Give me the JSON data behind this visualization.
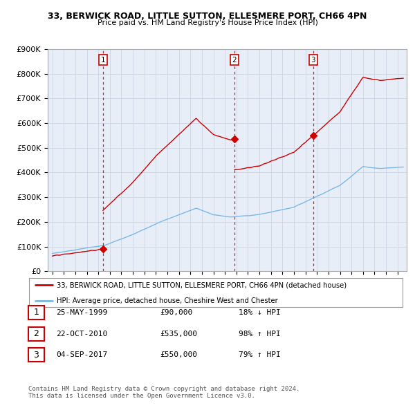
{
  "title_line1": "33, BERWICK ROAD, LITTLE SUTTON, ELLESMERE PORT, CH66 4PN",
  "title_line2": "Price paid vs. HM Land Registry's House Price Index (HPI)",
  "ylim": [
    0,
    900000
  ],
  "yticks": [
    0,
    100000,
    200000,
    300000,
    400000,
    500000,
    600000,
    700000,
    800000,
    900000
  ],
  "ytick_labels": [
    "£0",
    "£100K",
    "£200K",
    "£300K",
    "£400K",
    "£500K",
    "£600K",
    "£700K",
    "£800K",
    "£900K"
  ],
  "sales": [
    {
      "date_num": 1999.39,
      "price": 90000,
      "label": "1"
    },
    {
      "date_num": 2010.81,
      "price": 535000,
      "label": "2"
    },
    {
      "date_num": 2017.67,
      "price": 550000,
      "label": "3"
    }
  ],
  "sale_vlines": [
    1999.39,
    2010.81,
    2017.67
  ],
  "legend_red": "33, BERWICK ROAD, LITTLE SUTTON, ELLESMERE PORT, CH66 4PN (detached house)",
  "legend_blue": "HPI: Average price, detached house, Cheshire West and Chester",
  "table_rows": [
    {
      "num": "1",
      "date": "25-MAY-1999",
      "price": "£90,000",
      "change": "18% ↓ HPI"
    },
    {
      "num": "2",
      "date": "22-OCT-2010",
      "price": "£535,000",
      "change": "98% ↑ HPI"
    },
    {
      "num": "3",
      "date": "04-SEP-2017",
      "price": "£550,000",
      "change": "79% ↑ HPI"
    }
  ],
  "footer": "Contains HM Land Registry data © Crown copyright and database right 2024.\nThis data is licensed under the Open Government Licence v3.0.",
  "hpi_color": "#7ab8e8",
  "sale_color": "#cc0000",
  "vline_color": "#cc0000",
  "bg_color": "#ffffff",
  "grid_color": "#d0d8e8",
  "chart_bg": "#e8eef8"
}
